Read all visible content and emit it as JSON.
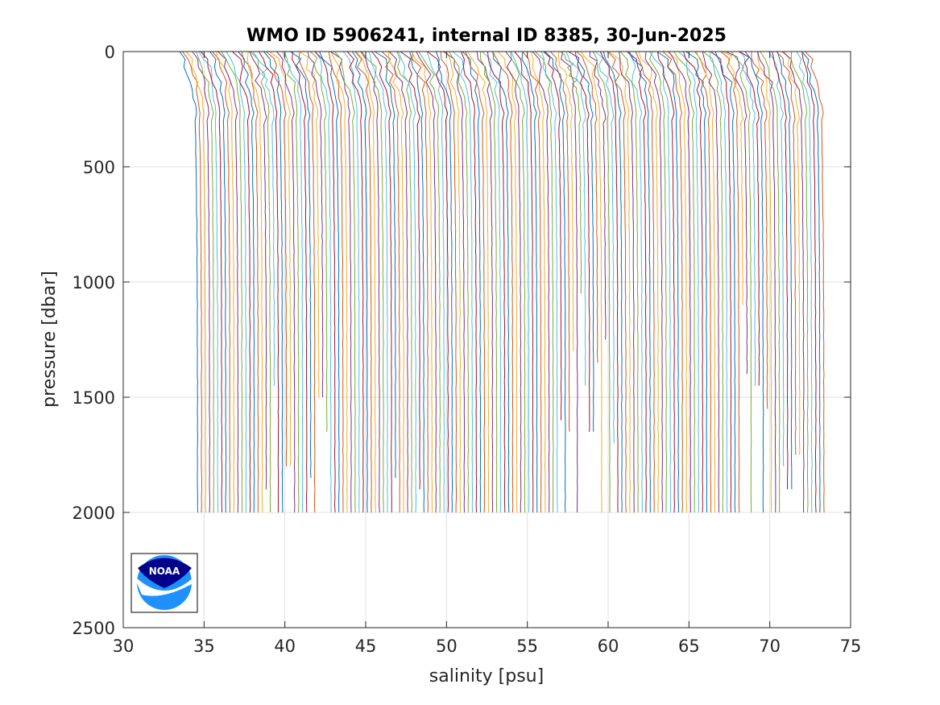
{
  "chart_data": {
    "type": "line",
    "title": "WMO ID 5906241, internal ID 8385, 30-Jun-2025",
    "xlabel": "salinity [psu]",
    "ylabel": "pressure [dbar]",
    "xlim": [
      30,
      75
    ],
    "ylim": [
      0,
      2500
    ],
    "y_reversed": true,
    "grid": true,
    "x_ticks": [
      "30",
      "35",
      "40",
      "45",
      "50",
      "55",
      "60",
      "65",
      "70",
      "75"
    ],
    "y_ticks": [
      "0",
      "500",
      "1000",
      "1500",
      "2000",
      "2500"
    ],
    "profile_offset_psu": 0.25,
    "profile_count": 156,
    "profile_surface_salinity": 33.5,
    "profile_deep_salinity": 34.6,
    "typical_max_pressure": 2000,
    "short_profile_max_pressures": [
      {
        "offset_psu": 38.9,
        "pressure": 1900
      },
      {
        "offset_psu": 39.4,
        "pressure": 1450
      },
      {
        "offset_psu": 40.2,
        "pressure": 1800
      },
      {
        "offset_psu": 41.6,
        "pressure": 1850
      },
      {
        "offset_psu": 42.2,
        "pressure": 1500
      },
      {
        "offset_psu": 42.6,
        "pressure": 1650
      },
      {
        "offset_psu": 46.9,
        "pressure": 1850
      },
      {
        "offset_psu": 48.3,
        "pressure": 1900
      },
      {
        "offset_psu": 57.1,
        "pressure": 1600
      },
      {
        "offset_psu": 57.6,
        "pressure": 1650
      },
      {
        "offset_psu": 57.9,
        "pressure": 1300
      },
      {
        "offset_psu": 58.3,
        "pressure": 1050
      },
      {
        "offset_psu": 58.6,
        "pressure": 1450
      },
      {
        "offset_psu": 59.0,
        "pressure": 1650
      },
      {
        "offset_psu": 59.4,
        "pressure": 1350
      },
      {
        "offset_psu": 59.9,
        "pressure": 1250
      },
      {
        "offset_psu": 60.4,
        "pressure": 1700
      },
      {
        "offset_psu": 68.3,
        "pressure": 1100
      },
      {
        "offset_psu": 68.6,
        "pressure": 1400
      },
      {
        "offset_psu": 69.2,
        "pressure": 1450
      },
      {
        "offset_psu": 69.8,
        "pressure": 1550
      },
      {
        "offset_psu": 70.9,
        "pressure": 1800
      },
      {
        "offset_psu": 71.2,
        "pressure": 1900
      },
      {
        "offset_psu": 71.7,
        "pressure": 1750
      }
    ]
  },
  "colors": {
    "series": [
      "#0072BD",
      "#D95319",
      "#EDB120",
      "#7E2F8E",
      "#77AC30",
      "#4DBEEE",
      "#A2142F"
    ],
    "grid": "#e0e0e0",
    "axis": "#262626",
    "noaa_dark": "#00008B",
    "noaa_light": "#1E90FF"
  },
  "logo": {
    "text": "NOAA",
    "icon": "noaa-logo-icon"
  }
}
